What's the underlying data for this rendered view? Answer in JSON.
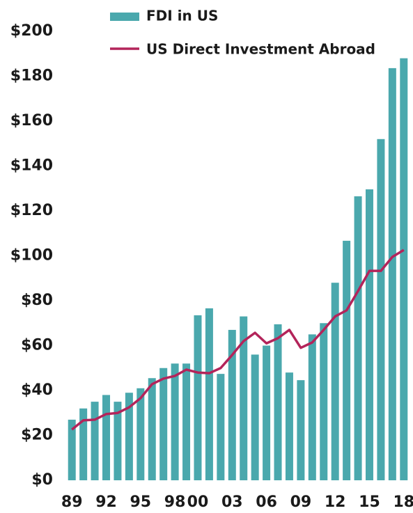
{
  "chart_data": {
    "type": "bar_line",
    "categories": [
      "89",
      null,
      null,
      "92",
      null,
      null,
      "95",
      null,
      null,
      "98",
      null,
      "00",
      null,
      null,
      "03",
      null,
      null,
      "06",
      null,
      null,
      "09",
      null,
      null,
      "12",
      null,
      null,
      "15",
      null,
      null,
      "18"
    ],
    "series": [
      {
        "name": "FDI in US",
        "type": "bar",
        "color": "#4aa8ad",
        "values": [
          27,
          32,
          35,
          38,
          35,
          39,
          41,
          45.5,
          50,
          52,
          52,
          73.5,
          76.6,
          47.4,
          67,
          73,
          56,
          60,
          69.5,
          48,
          44.6,
          65,
          70,
          88,
          106.7,
          126.5,
          129.6,
          152,
          183.6,
          188
        ]
      },
      {
        "name": "US Direct Investment Abroad",
        "type": "line",
        "color": "#b3245a",
        "values": [
          22.6,
          26.7,
          27,
          29.5,
          30,
          32.5,
          36.6,
          42.8,
          45.3,
          46.5,
          49.3,
          48,
          47.7,
          50,
          55.8,
          62,
          65.7,
          61,
          63.3,
          67,
          59,
          61.4,
          67,
          73,
          75.7,
          84.3,
          93.3,
          93.3,
          99.5,
          102.6
        ]
      }
    ],
    "ylim": [
      0,
      205
    ],
    "yticks": [
      {
        "value": 0,
        "label": "$0"
      },
      {
        "value": 20,
        "label": "$20"
      },
      {
        "value": 40,
        "label": "$40"
      },
      {
        "value": 60,
        "label": "$60"
      },
      {
        "value": 80,
        "label": "$80"
      },
      {
        "value": 100,
        "label": "$100"
      },
      {
        "value": 120,
        "label": "$120"
      },
      {
        "value": 140,
        "label": "$140"
      },
      {
        "value": 160,
        "label": "$160"
      },
      {
        "value": 180,
        "label": "$180"
      },
      {
        "value": 200,
        "label": "$200"
      }
    ],
    "legend": "top"
  }
}
